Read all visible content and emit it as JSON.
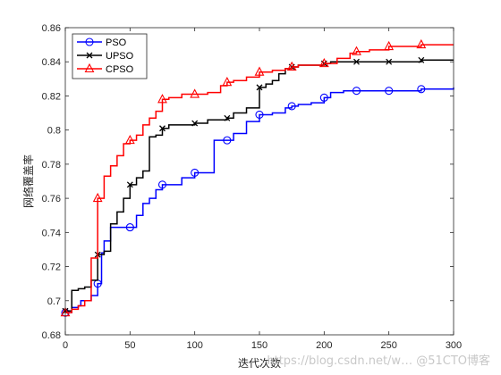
{
  "chart_data": {
    "type": "line",
    "xlabel": "迭代次数",
    "ylabel": "网络覆盖率",
    "xlim": [
      0,
      300
    ],
    "ylim": [
      0.68,
      0.86
    ],
    "xticks": [
      0,
      50,
      100,
      150,
      200,
      250,
      300
    ],
    "yticks": [
      0.68,
      0.7,
      0.72,
      0.74,
      0.76,
      0.78,
      0.8,
      0.82,
      0.84,
      0.86
    ],
    "ytick_labels": [
      "0.68",
      "0.7",
      "0.72",
      "0.74",
      "0.76",
      "0.78",
      "0.8",
      "0.82",
      "0.84",
      "0.86"
    ],
    "grid": false,
    "legend_position": "top-left",
    "series": [
      {
        "name": "PSO",
        "color": "#0000ff",
        "marker": "circle",
        "x": [
          0,
          5,
          10,
          12,
          20,
          25,
          28,
          30,
          35,
          45,
          50,
          55,
          60,
          65,
          70,
          75,
          80,
          90,
          100,
          110,
          115,
          125,
          130,
          140,
          150,
          160,
          170,
          175,
          180,
          190,
          200,
          205,
          215,
          225,
          235,
          250,
          260,
          275,
          285,
          300
        ],
        "y": [
          0.693,
          0.696,
          0.697,
          0.7,
          0.703,
          0.71,
          0.728,
          0.735,
          0.743,
          0.743,
          0.743,
          0.75,
          0.757,
          0.76,
          0.765,
          0.768,
          0.768,
          0.772,
          0.775,
          0.775,
          0.794,
          0.794,
          0.798,
          0.805,
          0.809,
          0.81,
          0.813,
          0.814,
          0.815,
          0.816,
          0.819,
          0.822,
          0.823,
          0.823,
          0.823,
          0.823,
          0.823,
          0.824,
          0.824,
          0.825
        ],
        "marker_x": [
          0,
          25,
          50,
          75,
          100,
          125,
          150,
          175,
          200,
          225,
          250,
          275
        ]
      },
      {
        "name": "UPSO",
        "color": "#000000",
        "marker": "x",
        "x": [
          0,
          5,
          10,
          15,
          20,
          25,
          30,
          35,
          40,
          45,
          50,
          55,
          60,
          65,
          70,
          75,
          80,
          90,
          100,
          110,
          120,
          125,
          130,
          140,
          150,
          155,
          160,
          165,
          170,
          175,
          180,
          190,
          200,
          205,
          215,
          225,
          250,
          275,
          300
        ],
        "y": [
          0.694,
          0.706,
          0.707,
          0.708,
          0.712,
          0.727,
          0.729,
          0.745,
          0.752,
          0.76,
          0.768,
          0.772,
          0.776,
          0.796,
          0.797,
          0.801,
          0.803,
          0.803,
          0.804,
          0.806,
          0.806,
          0.807,
          0.81,
          0.813,
          0.825,
          0.827,
          0.829,
          0.833,
          0.836,
          0.837,
          0.838,
          0.838,
          0.839,
          0.84,
          0.84,
          0.84,
          0.84,
          0.841,
          0.841
        ],
        "marker_x": [
          0,
          25,
          50,
          75,
          100,
          125,
          150,
          175,
          200,
          225,
          250,
          275
        ]
      },
      {
        "name": "CPSO",
        "color": "#ff0000",
        "marker": "triangle",
        "x": [
          0,
          5,
          10,
          15,
          20,
          25,
          30,
          35,
          40,
          45,
          50,
          55,
          60,
          65,
          70,
          75,
          80,
          90,
          100,
          110,
          120,
          125,
          130,
          140,
          150,
          160,
          170,
          175,
          180,
          190,
          200,
          210,
          220,
          225,
          235,
          250,
          265,
          275,
          285,
          300
        ],
        "y": [
          0.693,
          0.695,
          0.697,
          0.7,
          0.725,
          0.76,
          0.773,
          0.779,
          0.785,
          0.792,
          0.794,
          0.797,
          0.803,
          0.807,
          0.811,
          0.818,
          0.819,
          0.821,
          0.821,
          0.822,
          0.826,
          0.828,
          0.829,
          0.831,
          0.834,
          0.835,
          0.836,
          0.837,
          0.838,
          0.838,
          0.839,
          0.842,
          0.845,
          0.846,
          0.847,
          0.849,
          0.849,
          0.85,
          0.85,
          0.85
        ],
        "marker_x": [
          0,
          25,
          50,
          75,
          100,
          125,
          150,
          175,
          200,
          225,
          250,
          275
        ]
      }
    ]
  },
  "watermark": "https://blog.csdn.net/w… @51CTO博客"
}
